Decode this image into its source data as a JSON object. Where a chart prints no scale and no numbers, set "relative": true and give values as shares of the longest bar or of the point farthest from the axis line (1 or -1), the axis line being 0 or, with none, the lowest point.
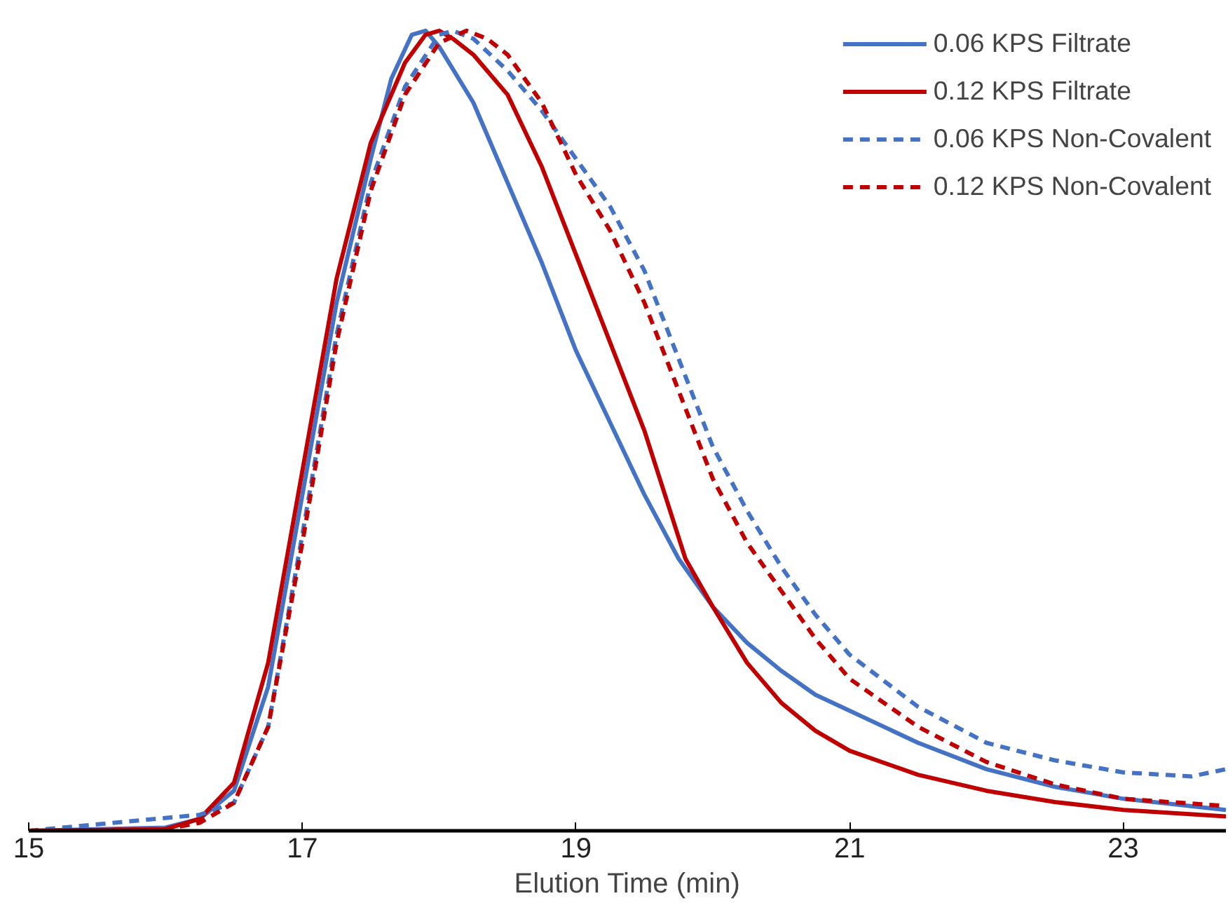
{
  "chart_data": {
    "type": "line",
    "relative": true,
    "xlabel": "Elution Time (min)",
    "xlim": [
      15,
      23.75
    ],
    "xticks": [
      15,
      17,
      19,
      21,
      23
    ],
    "tick_labels": "x",
    "grid": false,
    "legend": "top right",
    "series": [
      {
        "name": "0.06 KPS Filtrate",
        "color": "#4472c4",
        "line_style": "solid",
        "x": [
          15,
          16,
          16.25,
          16.5,
          16.75,
          17,
          17.25,
          17.5,
          17.65,
          17.8,
          17.9,
          18,
          18.25,
          18.5,
          18.75,
          19,
          19.25,
          19.5,
          19.75,
          20,
          20.25,
          20.5,
          20.75,
          21,
          21.5,
          22,
          22.5,
          23,
          23.75
        ],
        "values": [
          0,
          0.004,
          0.015,
          0.05,
          0.18,
          0.42,
          0.66,
          0.84,
          0.94,
          0.995,
          1.0,
          0.98,
          0.91,
          0.81,
          0.71,
          0.6,
          0.51,
          0.42,
          0.34,
          0.28,
          0.235,
          0.2,
          0.17,
          0.15,
          0.11,
          0.077,
          0.055,
          0.04,
          0.026
        ]
      },
      {
        "name": "0.12 KPS Filtrate",
        "color": "#c00000",
        "line_style": "solid",
        "x": [
          15,
          16,
          16.25,
          16.5,
          16.75,
          17,
          17.25,
          17.5,
          17.75,
          17.9,
          18,
          18.1,
          18.25,
          18.5,
          18.75,
          19,
          19.25,
          19.5,
          19.8,
          20,
          20.25,
          20.5,
          20.75,
          21,
          21.5,
          22,
          22.5,
          23,
          23.75
        ],
        "values": [
          0,
          0.002,
          0.015,
          0.06,
          0.21,
          0.45,
          0.69,
          0.86,
          0.96,
          0.995,
          1.0,
          0.99,
          0.97,
          0.92,
          0.83,
          0.72,
          0.61,
          0.5,
          0.34,
          0.28,
          0.21,
          0.16,
          0.125,
          0.1,
          0.07,
          0.05,
          0.036,
          0.026,
          0.018
        ]
      },
      {
        "name": "0.06 KPS Non-Covalent",
        "color": "#4472c4",
        "line_style": "dashed",
        "x": [
          15,
          16,
          16.25,
          16.5,
          16.75,
          17,
          17.25,
          17.5,
          17.75,
          18,
          18.1,
          18.25,
          18.5,
          18.75,
          19,
          19.25,
          19.5,
          19.75,
          20,
          20.25,
          20.5,
          20.75,
          21,
          21.5,
          22,
          22.5,
          23,
          23.5,
          23.75
        ],
        "values": [
          0,
          0.016,
          0.02,
          0.035,
          0.13,
          0.37,
          0.62,
          0.81,
          0.93,
          0.995,
          1.0,
          0.99,
          0.95,
          0.9,
          0.84,
          0.78,
          0.7,
          0.59,
          0.48,
          0.4,
          0.33,
          0.27,
          0.22,
          0.155,
          0.11,
          0.088,
          0.073,
          0.068,
          0.077
        ]
      },
      {
        "name": "0.12 KPS Non-Covalent",
        "color": "#c00000",
        "line_style": "dashed",
        "x": [
          15,
          16,
          16.25,
          16.5,
          16.75,
          17,
          17.25,
          17.5,
          17.75,
          18,
          18.2,
          18.35,
          18.5,
          18.75,
          19,
          19.25,
          19.5,
          19.75,
          20,
          20.25,
          20.5,
          20.75,
          21,
          21.5,
          22,
          22.5,
          23,
          23.75
        ],
        "values": [
          0,
          0.002,
          0.01,
          0.035,
          0.13,
          0.36,
          0.61,
          0.8,
          0.92,
          0.985,
          1.0,
          0.99,
          0.97,
          0.91,
          0.82,
          0.75,
          0.66,
          0.55,
          0.44,
          0.36,
          0.3,
          0.24,
          0.19,
          0.13,
          0.086,
          0.058,
          0.04,
          0.031
        ]
      }
    ]
  }
}
